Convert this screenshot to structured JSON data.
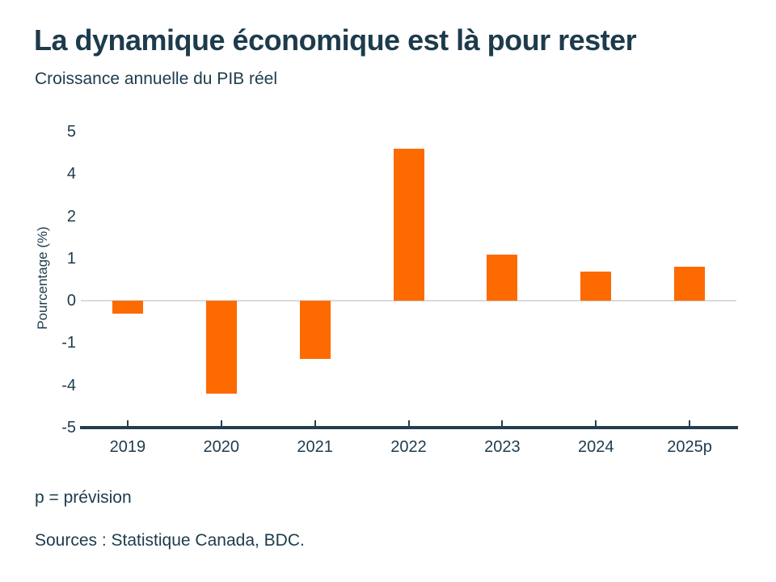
{
  "header": {
    "title": "La dynamique économique est là pour rester",
    "subtitle": "Croissance annuelle du PIB réel"
  },
  "chart_data": {
    "type": "bar",
    "title": "La dynamique économique est là pour rester",
    "subtitle": "Croissance annuelle du PIB réel",
    "xlabel": "",
    "ylabel": "Pourcentage (%)",
    "categories": [
      "2019",
      "2020",
      "2021",
      "2022",
      "2023",
      "2024",
      "2025p"
    ],
    "values": [
      -0.3,
      -4.2,
      -2.1,
      4.6,
      1.1,
      0.7,
      0.8
    ],
    "y_tick_labels": [
      "5",
      "4",
      "2",
      "1",
      "0",
      "-1",
      "-4",
      "-5"
    ],
    "axis_note": "ticks evenly spaced as labeled (non-linear scale)",
    "grid": "zero-line-only",
    "legend": "none",
    "bar_color": "#FC6A00"
  },
  "colors": {
    "accent_orange": "#FC6A00",
    "text_navy": "#1D3B4D",
    "axis_navy": "#223F4F",
    "zero_gridline": "#DBDBDB",
    "background": "#FFFFFF"
  },
  "footer": {
    "note": "p = prévision",
    "sources": "Sources : Statistique Canada, BDC."
  }
}
